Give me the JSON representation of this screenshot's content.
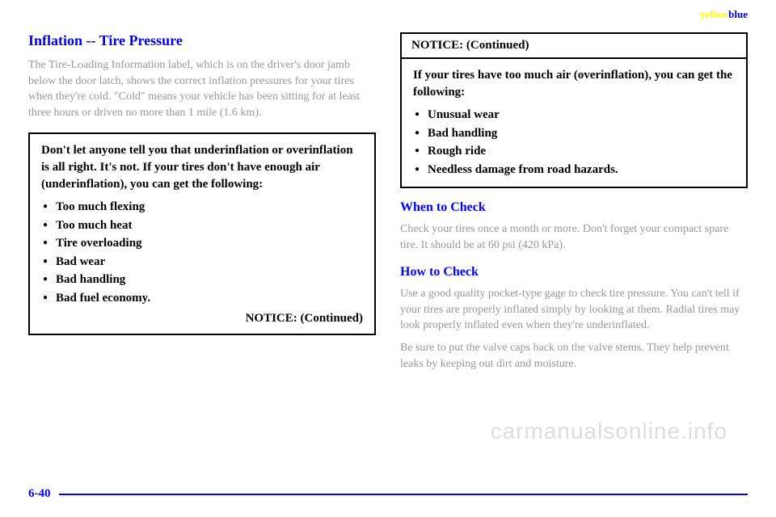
{
  "header": {
    "yellow_text": "yellow",
    "blue_text": "blue"
  },
  "left_col": {
    "heading": "Inflation -- Tire Pressure",
    "para1": "The Tire-Loading Information label, which is on the driver's door jamb below the door latch, shows the correct inflation pressures for your tires when they're cold. \"Cold\" means your vehicle has been sitting for at least three hours or driven no more than 1 mile (1.6 km).",
    "notice_intro": "Don't let anyone tell you that underinflation or overinflation is all right. It's not. If your tires don't have enough air (underinflation), you can get the following:",
    "notice_items": [
      "Too much flexing",
      "Too much heat",
      "Tire overloading",
      "Bad wear",
      "Bad handling",
      "Bad fuel economy."
    ],
    "notice_continued": "NOTICE: (Continued)"
  },
  "right_col": {
    "notice_header": "NOTICE: (Continued)",
    "notice_intro": "If your tires have too much air (overinflation), you can get the following:",
    "notice_items": [
      "Unusual wear",
      "Bad handling",
      "Rough ride",
      "Needless damage from road hazards."
    ],
    "when_heading": "When to Check",
    "when_text": "Check your tires once a month or more. Don't forget your compact spare tire. It should be at 60 psi (420 kPa).",
    "how_heading": "How to Check",
    "how_text": "Use a good quality pocket-type gage to check tire pressure. You can't tell if your tires are properly inflated simply by looking at them. Radial tires may look properly inflated even when they're underinflated.",
    "how_text2": "Be sure to put the valve caps back on the valve stems. They help prevent leaks by keeping out dirt and moisture."
  },
  "watermark": "carmanualsonline.info",
  "footer": {
    "page_num": "6-40"
  }
}
